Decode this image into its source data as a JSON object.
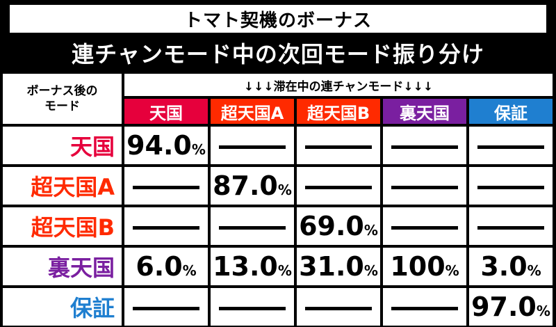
{
  "title": "トマト契機のボーナス",
  "subtitle": "連チャンモード中の次回モード振り分け",
  "corner_label_line1": "ボーナス後の",
  "corner_label_line2": "モード",
  "column_group_label": "↓↓↓滞在中の連チャンモード↓↓↓",
  "columns": [
    {
      "label": "天国",
      "color": "#e6003c"
    },
    {
      "label": "超天国A",
      "color": "#ff2a00"
    },
    {
      "label": "超天国B",
      "color": "#ff2a00"
    },
    {
      "label": "裏天国",
      "color": "#7a1fa0"
    },
    {
      "label": "保証",
      "color": "#1f7fd0"
    }
  ],
  "rows": [
    {
      "label": "天国",
      "color": "#e6003c",
      "cells": [
        "94.0",
        "—",
        "—",
        "—",
        "—"
      ]
    },
    {
      "label": "超天国A",
      "color": "#ff2a00",
      "cells": [
        "—",
        "87.0",
        "—",
        "—",
        "—"
      ]
    },
    {
      "label": "超天国B",
      "color": "#ff2a00",
      "cells": [
        "—",
        "—",
        "69.0",
        "—",
        "—"
      ]
    },
    {
      "label": "裏天国",
      "color": "#7a1fa0",
      "cells": [
        "6.0",
        "13.0",
        "31.0",
        "100",
        "3.0"
      ]
    },
    {
      "label": "保証",
      "color": "#1f7fd0",
      "cells": [
        "—",
        "—",
        "—",
        "—",
        "97.0"
      ]
    }
  ],
  "percent_sign": "%"
}
